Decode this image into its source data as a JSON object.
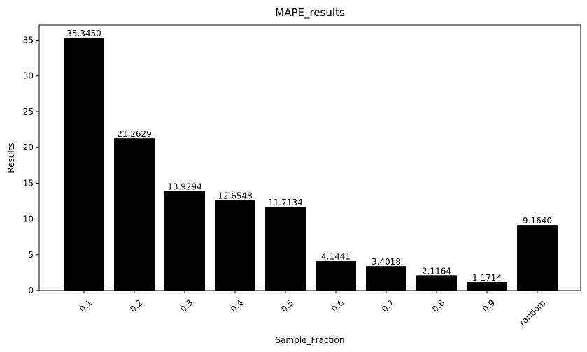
{
  "chart_data": {
    "type": "bar",
    "title": "MAPE_results",
    "xlabel": "Sample_Fraction",
    "ylabel": "Results",
    "categories": [
      "0.1",
      "0.2",
      "0.3",
      "0.4",
      "0.5",
      "0.6",
      "0.7",
      "0.8",
      "0.9",
      "random"
    ],
    "values": [
      35.345,
      21.2629,
      13.9294,
      12.6548,
      11.7134,
      4.1441,
      3.4018,
      2.1164,
      1.1714,
      9.164
    ],
    "value_labels": [
      "35.3450",
      "21.2629",
      "13.9294",
      "12.6548",
      "11.7134",
      "4.1441",
      "3.4018",
      "2.1164",
      "1.1714",
      "9.1640"
    ],
    "ylim": [
      0,
      37.1
    ],
    "yticks": [
      0,
      5,
      10,
      15,
      20,
      25,
      30,
      35
    ],
    "bar_color": "#000000",
    "grid": false,
    "x_tick_rotation_deg": 45
  }
}
